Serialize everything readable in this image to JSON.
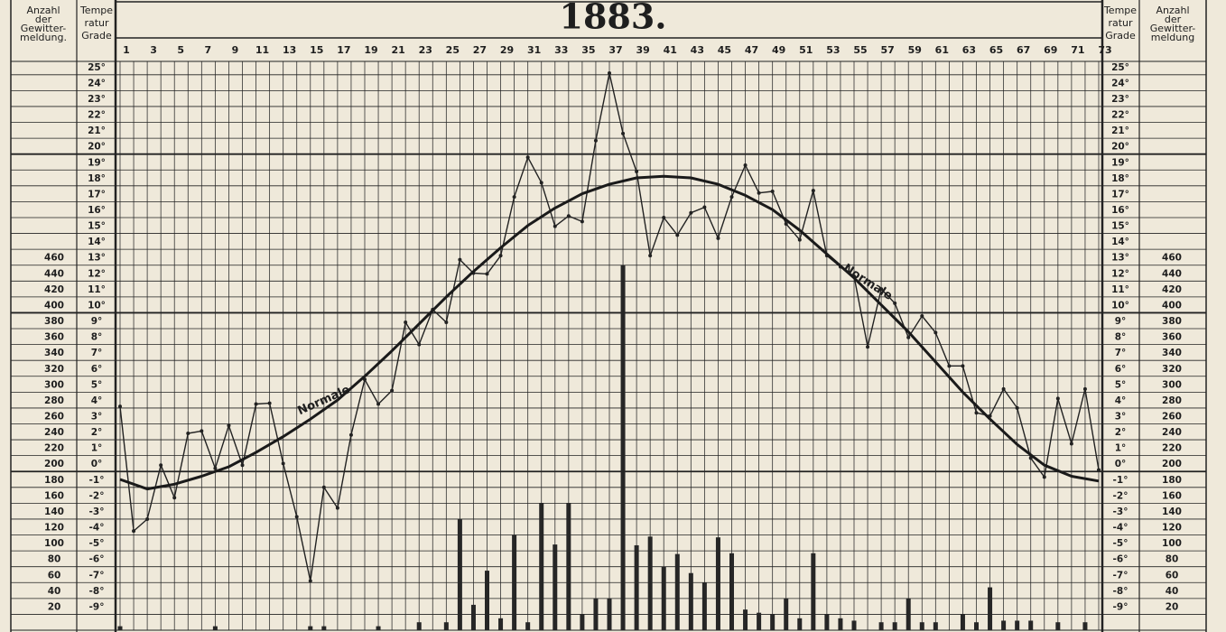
{
  "chart_data": {
    "type": "line",
    "title": "1883.",
    "ylabel": [
      "Tempe",
      "ratur",
      "Grade"
    ],
    "y2label": [
      "Anzahl",
      "der",
      "Gewitter-",
      "meldung."
    ],
    "ylabel_right": [
      "Tempe",
      "ratur",
      "Grade"
    ],
    "y2label_right": [
      "Anzahl",
      "der",
      "Gewitter-",
      "meldung"
    ],
    "x": [
      1,
      2,
      3,
      4,
      5,
      6,
      7,
      8,
      9,
      10,
      11,
      12,
      13,
      14,
      15,
      16,
      17,
      18,
      19,
      20,
      21,
      22,
      23,
      24,
      25,
      26,
      27,
      28,
      29,
      30,
      31,
      32,
      33,
      34,
      35,
      36,
      37,
      38,
      39,
      40,
      41,
      42,
      43,
      44,
      45,
      46,
      47,
      48,
      49,
      50,
      51,
      52,
      53,
      54,
      55,
      56,
      57,
      58,
      59,
      60,
      61,
      62,
      63,
      64,
      65,
      66,
      67,
      68,
      69,
      70,
      71,
      72,
      73
    ],
    "xlim": [
      1,
      73
    ],
    "xticks": [
      1,
      3,
      5,
      7,
      9,
      11,
      13,
      15,
      17,
      19,
      21,
      23,
      25,
      27,
      29,
      31,
      33,
      35,
      37,
      39,
      41,
      43,
      45,
      47,
      49,
      51,
      53,
      55,
      57,
      59,
      61,
      63,
      65,
      67,
      69,
      71,
      73
    ],
    "ylim": [
      -10,
      25.5
    ],
    "yticks": [
      {
        "value": -9,
        "label": "-9°"
      },
      {
        "value": -8,
        "label": "-8°"
      },
      {
        "value": -7,
        "label": "-7°"
      },
      {
        "value": -6,
        "label": "-6°"
      },
      {
        "value": -5,
        "label": "-5°"
      },
      {
        "value": -4,
        "label": "-4°"
      },
      {
        "value": -3,
        "label": "-3°"
      },
      {
        "value": -2,
        "label": "-2°"
      },
      {
        "value": -1,
        "label": "-1°"
      },
      {
        "value": 0,
        "label": "0°"
      },
      {
        "value": 1,
        "label": "1°"
      },
      {
        "value": 2,
        "label": "2°"
      },
      {
        "value": 3,
        "label": "3°"
      },
      {
        "value": 4,
        "label": "4°"
      },
      {
        "value": 5,
        "label": "5°"
      },
      {
        "value": 6,
        "label": "6°"
      },
      {
        "value": 7,
        "label": "7°"
      },
      {
        "value": 8,
        "label": "8°"
      },
      {
        "value": 9,
        "label": "9°"
      },
      {
        "value": 10,
        "label": "10°"
      },
      {
        "value": 11,
        "label": "11°"
      },
      {
        "value": 12,
        "label": "12°"
      },
      {
        "value": 13,
        "label": "13°"
      },
      {
        "value": 14,
        "label": "14°"
      },
      {
        "value": 15,
        "label": "15°"
      },
      {
        "value": 16,
        "label": "16°"
      },
      {
        "value": 17,
        "label": "17°"
      },
      {
        "value": 18,
        "label": "18°"
      },
      {
        "value": 19,
        "label": "19°"
      },
      {
        "value": 20,
        "label": "20°"
      },
      {
        "value": 21,
        "label": "21°"
      },
      {
        "value": 22,
        "label": "22°"
      },
      {
        "value": 23,
        "label": "23°"
      },
      {
        "value": 24,
        "label": "24°"
      },
      {
        "value": 25,
        "label": "25°"
      }
    ],
    "y2lim": [
      0,
      710
    ],
    "y2ticks": [
      20,
      40,
      60,
      80,
      100,
      120,
      140,
      160,
      180,
      200,
      220,
      240,
      260,
      280,
      300,
      320,
      340,
      360,
      380,
      400,
      420,
      440,
      460
    ],
    "grid": true,
    "series": [
      {
        "color": "#222222",
        "values": [
          4.1,
          -3.75,
          -3.0,
          0.4,
          -1.65,
          2.4,
          2.55,
          0.2,
          2.9,
          0.4,
          4.25,
          4.3,
          0.5,
          -2.85,
          -6.9,
          -1.0,
          -2.3,
          2.3,
          5.8,
          4.25,
          5.1,
          9.4,
          8.0,
          10.2,
          9.4,
          13.35,
          12.5,
          12.45,
          13.6,
          17.3,
          19.8,
          18.2,
          15.45,
          16.1,
          15.75,
          20.85,
          25.1,
          21.3,
          18.9,
          13.6,
          16.0,
          14.9,
          16.3,
          16.65,
          14.7,
          17.3,
          19.3,
          17.55,
          17.65,
          15.6,
          14.6,
          17.7,
          13.6,
          12.9,
          12.3,
          7.85,
          11.5,
          10.6,
          8.45,
          9.8,
          8.75,
          6.65,
          6.65,
          3.7,
          3.5,
          5.2,
          4.0,
          0.85,
          -0.35,
          4.6,
          1.75,
          5.2,
          0.1
        ]
      },
      {
        "name": "Normale",
        "color": "#1a1a1a",
        "x": [
          1,
          3,
          5,
          7,
          9,
          11,
          13,
          15,
          17,
          19,
          21,
          23,
          25,
          27,
          29,
          31,
          33,
          35,
          37,
          39,
          41,
          43,
          45,
          47,
          49,
          51,
          53,
          55,
          57,
          59,
          61,
          63,
          65,
          67,
          69,
          71,
          73
        ],
        "values": [
          -0.5,
          -1.1,
          -0.8,
          -0.3,
          0.3,
          1.2,
          2.2,
          3.3,
          4.5,
          6.0,
          7.6,
          9.3,
          11.0,
          12.6,
          14.1,
          15.5,
          16.6,
          17.5,
          18.1,
          18.5,
          18.6,
          18.5,
          18.1,
          17.4,
          16.5,
          15.2,
          13.7,
          12.2,
          10.5,
          8.8,
          6.9,
          5.0,
          3.3,
          1.7,
          0.4,
          -0.3,
          -0.6
        ]
      },
      {
        "type": "bar",
        "axis": "y2",
        "color": "#262626",
        "values": [
          5,
          0,
          0,
          0,
          0,
          0,
          0,
          5,
          0,
          0,
          0,
          0,
          0,
          0,
          5,
          5,
          0,
          0,
          0,
          5,
          0,
          0,
          10,
          0,
          10,
          140,
          32,
          75,
          15,
          120,
          10,
          160,
          108,
          160,
          20,
          40,
          40,
          460,
          107,
          118,
          80,
          96,
          72,
          60,
          117,
          97,
          26,
          22,
          20,
          40,
          15,
          97,
          20,
          15,
          12,
          0,
          10,
          10,
          40,
          10,
          10,
          0,
          20,
          10,
          54,
          12,
          12,
          12,
          0,
          10,
          0,
          10,
          0
        ]
      }
    ]
  }
}
